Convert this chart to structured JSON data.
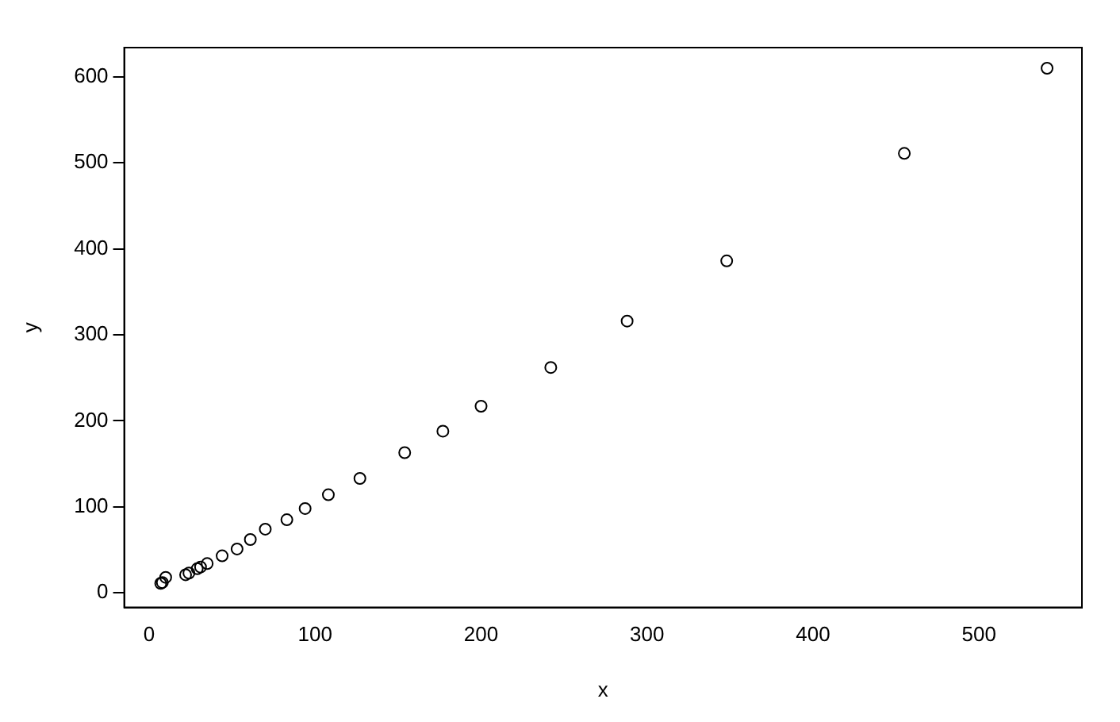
{
  "chart_data": {
    "type": "scatter",
    "xlabel": "x",
    "ylabel": "y",
    "x": [
      7,
      8,
      10,
      22,
      24,
      29,
      31,
      35,
      44,
      53,
      61,
      70,
      83,
      94,
      108,
      127,
      154,
      177,
      200,
      242,
      288,
      348,
      455,
      541
    ],
    "values": [
      11,
      12,
      18,
      21,
      23,
      28,
      30,
      34,
      43,
      51,
      62,
      74,
      85,
      98,
      114,
      133,
      163,
      188,
      217,
      262,
      316,
      386,
      511,
      610
    ],
    "color": "#000000",
    "marker": "circle",
    "grid": false,
    "xlim": [
      -15,
      562
    ],
    "ylim": [
      -17,
      634
    ],
    "xticks": [
      0,
      100,
      200,
      300,
      400,
      500
    ],
    "yticks": [
      0,
      100,
      200,
      300,
      400,
      500,
      600
    ]
  }
}
